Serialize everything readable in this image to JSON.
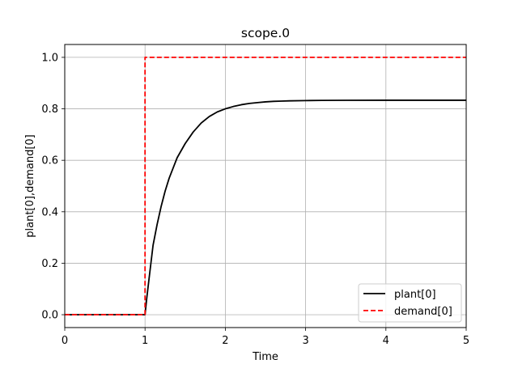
{
  "chart_data": {
    "type": "line",
    "title": "scope.0",
    "xlabel": "Time",
    "ylabel": "plant[0],demand[0]",
    "xlim": [
      0,
      5
    ],
    "ylim": [
      -0.05,
      1.05
    ],
    "xticks": [
      0,
      1,
      2,
      3,
      4,
      5
    ],
    "yticks": [
      0.0,
      0.2,
      0.4,
      0.6,
      0.8,
      1.0
    ],
    "xtick_labels": [
      "0",
      "1",
      "2",
      "3",
      "4",
      "5"
    ],
    "ytick_labels": [
      "0.0",
      "0.2",
      "0.4",
      "0.6",
      "0.8",
      "1.0"
    ],
    "grid": true,
    "legend_position": "lower-right",
    "series": [
      {
        "name": "plant[0]",
        "color": "#000000",
        "style": "solid",
        "x": [
          0,
          1.0,
          1.02,
          1.05,
          1.1,
          1.15,
          1.2,
          1.25,
          1.3,
          1.35,
          1.4,
          1.5,
          1.6,
          1.7,
          1.8,
          1.9,
          2.0,
          2.1,
          2.2,
          2.3,
          2.4,
          2.5,
          2.6,
          2.7,
          2.8,
          3.0,
          3.2,
          3.5,
          4.0,
          4.5,
          5.0
        ],
        "y": [
          0,
          0,
          0.06,
          0.14,
          0.27,
          0.35,
          0.42,
          0.48,
          0.53,
          0.57,
          0.61,
          0.665,
          0.71,
          0.745,
          0.77,
          0.788,
          0.8,
          0.809,
          0.816,
          0.821,
          0.824,
          0.827,
          0.829,
          0.83,
          0.831,
          0.832,
          0.8328,
          0.8331,
          0.8333,
          0.8333,
          0.8333
        ]
      },
      {
        "name": "demand[0]",
        "color": "#ff0000",
        "style": "dashed",
        "x": [
          0,
          1.0,
          1.0,
          5.0
        ],
        "y": [
          0,
          0,
          1.0,
          1.0
        ]
      }
    ]
  }
}
